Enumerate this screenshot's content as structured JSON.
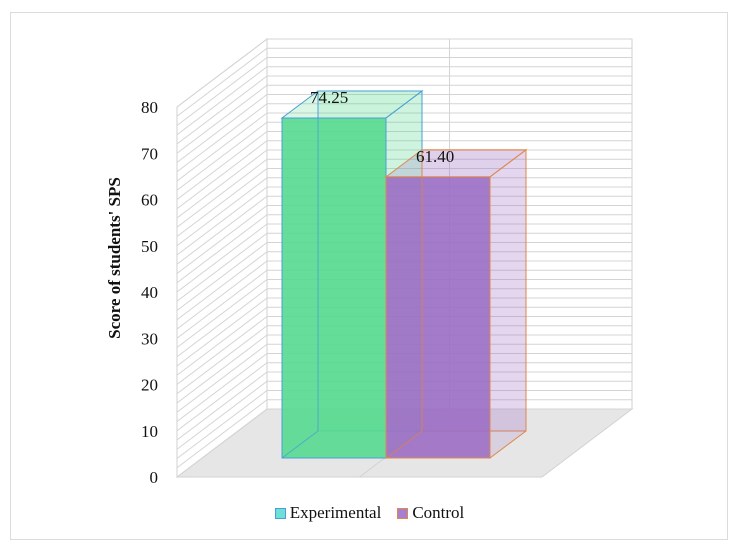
{
  "chart_data": {
    "type": "bar",
    "categories": [
      ""
    ],
    "series": [
      {
        "name": "Experimental",
        "values": [
          74.25
        ],
        "label": "74.25",
        "face_color": "#55d98f",
        "edge_color": "#4a9fd8",
        "swatch_color": "#6fe0d6"
      },
      {
        "name": "Control",
        "values": [
          61.4
        ],
        "label": "61.40",
        "face_color": "#9b6dc4",
        "edge_color": "#e0874a",
        "swatch_color": "#a77fd0"
      }
    ],
    "title": "",
    "xlabel": "",
    "ylabel": "Score of students' SPS",
    "ylim": [
      0,
      80
    ],
    "yticks": [
      "0",
      "10",
      "20",
      "30",
      "40",
      "50",
      "60",
      "70",
      "80"
    ],
    "grid": true,
    "style": "3d-column",
    "legend_position": "bottom"
  }
}
